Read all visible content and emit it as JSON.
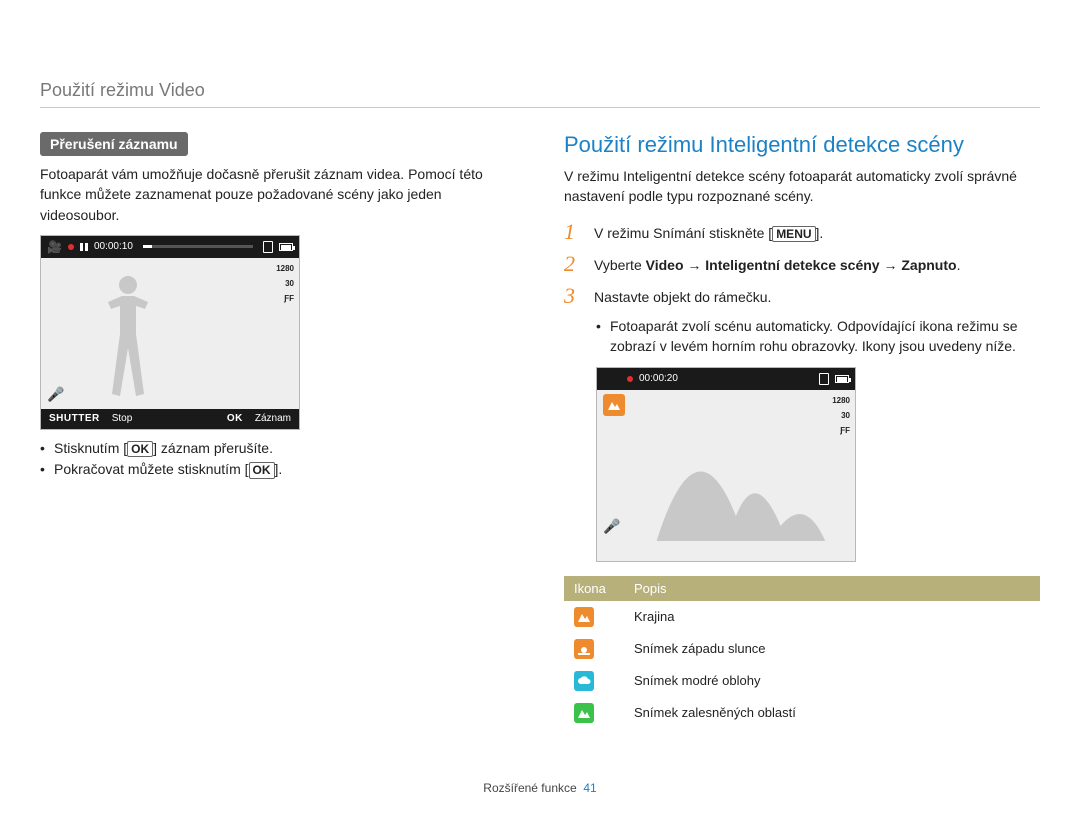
{
  "header": {
    "title": "Použití režimu Video"
  },
  "left": {
    "section_label": "Přerušení záznamu",
    "paragraph": "Fotoaparát vám umožňuje dočasně přerušit záznam videa. Pomocí této funkce můžete zaznamenat pouze požadované scény jako jeden videosoubor.",
    "screen": {
      "time": "00:00:10",
      "res": "1280",
      "fps": "30",
      "af": "ƑF",
      "bottom_shutter": "SHUTTER",
      "bottom_stop": "Stop",
      "bottom_ok": "OK",
      "bottom_record": "Záznam"
    },
    "bullet1_a": "Stisknutím [",
    "bullet1_ok": "OK",
    "bullet1_b": "] záznam přerušíte.",
    "bullet2_a": "Pokračovat můžete stisknutím [",
    "bullet2_ok": "OK",
    "bullet2_b": "]."
  },
  "right": {
    "title": "Použití režimu Inteligentní detekce scény",
    "intro": "V režimu Inteligentní detekce scény fotoaparát automaticky zvolí správné nastavení podle typu rozpoznané scény.",
    "step1_a": "V režimu Snímání stiskněte [",
    "step1_menu": "MENU",
    "step1_b": "].",
    "step2_a": "Vyberte ",
    "step2_video": "Video",
    "step2_arrow1": " → ",
    "step2_ids": "Inteligentní detekce scény",
    "step2_arrow2": " → ",
    "step2_on": "Zapnuto",
    "step2_dot": ".",
    "step3": "Nastavte objekt do rámečku.",
    "step3_sub": "Fotoaparát zvolí scénu automaticky. Odpovídající ikona režimu se zobrazí v levém horním rohu obrazovky. Ikony jsou uvedeny níže.",
    "screen": {
      "time": "00:00:20",
      "res": "1280",
      "fps": "30",
      "af": "ƑF",
      "corner_icon_bg": "#ed8b2e"
    },
    "table": {
      "h_icon": "Ikona",
      "h_desc": "Popis",
      "rows": [
        {
          "bg": "#ed8b2e",
          "desc": "Krajina",
          "svg": "mountain"
        },
        {
          "bg": "#ed8b2e",
          "desc": "Snímek západu slunce",
          "svg": "sunset"
        },
        {
          "bg": "#2ab8d8",
          "desc": "Snímek modré oblohy",
          "svg": "cloud"
        },
        {
          "bg": "#3bc24a",
          "desc": "Snímek zalesněných oblastí",
          "svg": "mountain"
        }
      ]
    }
  },
  "footer": {
    "section": "Rozšířené funkce",
    "page": "41"
  },
  "colors": {
    "orange": "#ed8b2e",
    "blue_title": "#1b82c5",
    "table_header": "#b8b07a",
    "cyan": "#2ab8d8",
    "green": "#3bc24a"
  }
}
